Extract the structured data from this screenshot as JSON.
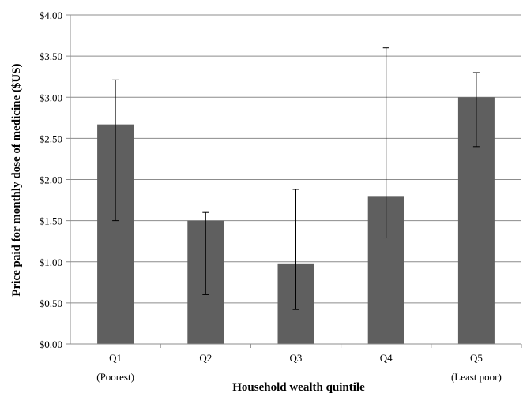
{
  "chart_data": {
    "type": "bar",
    "categories": [
      "Q1",
      "Q2",
      "Q3",
      "Q4",
      "Q5"
    ],
    "sublabels": [
      "(Poorest)",
      "",
      "",
      "",
      "(Least poor)"
    ],
    "values": [
      2.67,
      1.5,
      0.98,
      1.8,
      3.0
    ],
    "error_low": [
      1.5,
      0.6,
      0.42,
      1.29,
      2.4
    ],
    "error_high": [
      3.21,
      1.6,
      1.88,
      3.6,
      3.3
    ],
    "ylim": [
      0,
      4
    ],
    "yticks": [
      {
        "value": 0,
        "label": "$0.00"
      },
      {
        "value": 0.5,
        "label": "$0.50"
      },
      {
        "value": 1,
        "label": "$1.00"
      },
      {
        "value": 1.5,
        "label": "$1.50"
      },
      {
        "value": 2,
        "label": "$2.00"
      },
      {
        "value": 2.5,
        "label": "$2.50"
      },
      {
        "value": 3,
        "label": "$3.00"
      },
      {
        "value": 3.5,
        "label": "$3.50"
      },
      {
        "value": 4,
        "label": "$4.00"
      }
    ],
    "xlabel": "Household wealth quintile",
    "ylabel": "Price paid for monthly dose of medicine ($US)",
    "grid": true,
    "bar_color": "#5f5f5f",
    "grid_color": "#8c8c8c"
  }
}
